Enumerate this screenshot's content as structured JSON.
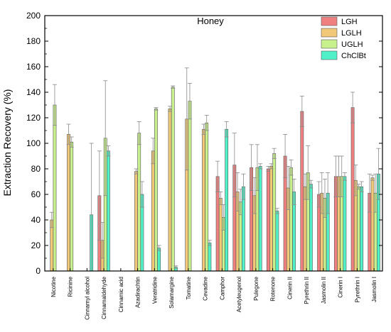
{
  "chart_data": {
    "type": "bar",
    "title": "Honey",
    "xlabel": "",
    "ylabel": "Extraction Recovery (%)",
    "ylim": [
      0,
      200
    ],
    "yticks": [
      0,
      20,
      40,
      60,
      80,
      100,
      120,
      140,
      160,
      180,
      200
    ],
    "grid": false,
    "legend_position": "top-right",
    "categories": [
      "Nicotine",
      "Ricinine",
      "Cinnamyl alcohol",
      "Cinnamaldehyde",
      "Cinnamic acid",
      "Azadirachtin",
      "Veratridine",
      "Solamargine",
      "Tomatine",
      "Cevadine",
      "Camphor",
      "Acetyleugenol",
      "Pulegone",
      "Rotenone",
      "Cinerin II",
      "Pyrethrin II",
      "Jasmolin II",
      "Cinerin I",
      "Pyrethrin I",
      "Jasmolin I"
    ],
    "series": [
      {
        "name": "LGH",
        "color": "#f08080",
        "values": [
          null,
          null,
          null,
          59,
          null,
          null,
          null,
          null,
          null,
          null,
          74,
          83,
          81,
          80,
          90,
          125,
          60,
          74,
          128,
          61
        ],
        "errors": [
          null,
          null,
          null,
          35,
          null,
          null,
          null,
          null,
          null,
          null,
          12,
          25,
          18,
          2,
          17,
          12,
          10,
          16,
          12,
          15
        ]
      },
      {
        "name": "LGLH",
        "color": "#f0c878",
        "values": [
          40,
          107,
          null,
          24,
          null,
          78,
          94,
          127,
          119,
          111,
          57,
          62,
          59,
          82,
          65,
          66,
          61,
          74,
          71,
          73
        ],
        "errors": [
          6,
          8,
          null,
          14,
          null,
          2,
          10,
          2,
          40,
          4,
          5,
          15,
          14,
          2,
          17,
          10,
          16,
          16,
          12,
          2
        ]
      },
      {
        "name": "UGLH",
        "color": "#c8f08c",
        "values": [
          130,
          101,
          null,
          104,
          null,
          108,
          127,
          144,
          133,
          116,
          42,
          54,
          81,
          92,
          81,
          77,
          57,
          74,
          66,
          61
        ],
        "errors": [
          16,
          4,
          null,
          45,
          null,
          9,
          1,
          1,
          14,
          6,
          10,
          10,
          18,
          4,
          6,
          21,
          15,
          16,
          2,
          15
        ]
      },
      {
        "name": "ChClBt",
        "color": "#50f0c8",
        "values": [
          null,
          null,
          44,
          94,
          null,
          60,
          18,
          3,
          null,
          22,
          111,
          66,
          82,
          47,
          62,
          68,
          61,
          74,
          66,
          76
        ],
        "errors": [
          null,
          null,
          56,
          4,
          null,
          10,
          2,
          1,
          null,
          2,
          6,
          10,
          2,
          2,
          10,
          3,
          16,
          3,
          4,
          20
        ]
      }
    ]
  }
}
